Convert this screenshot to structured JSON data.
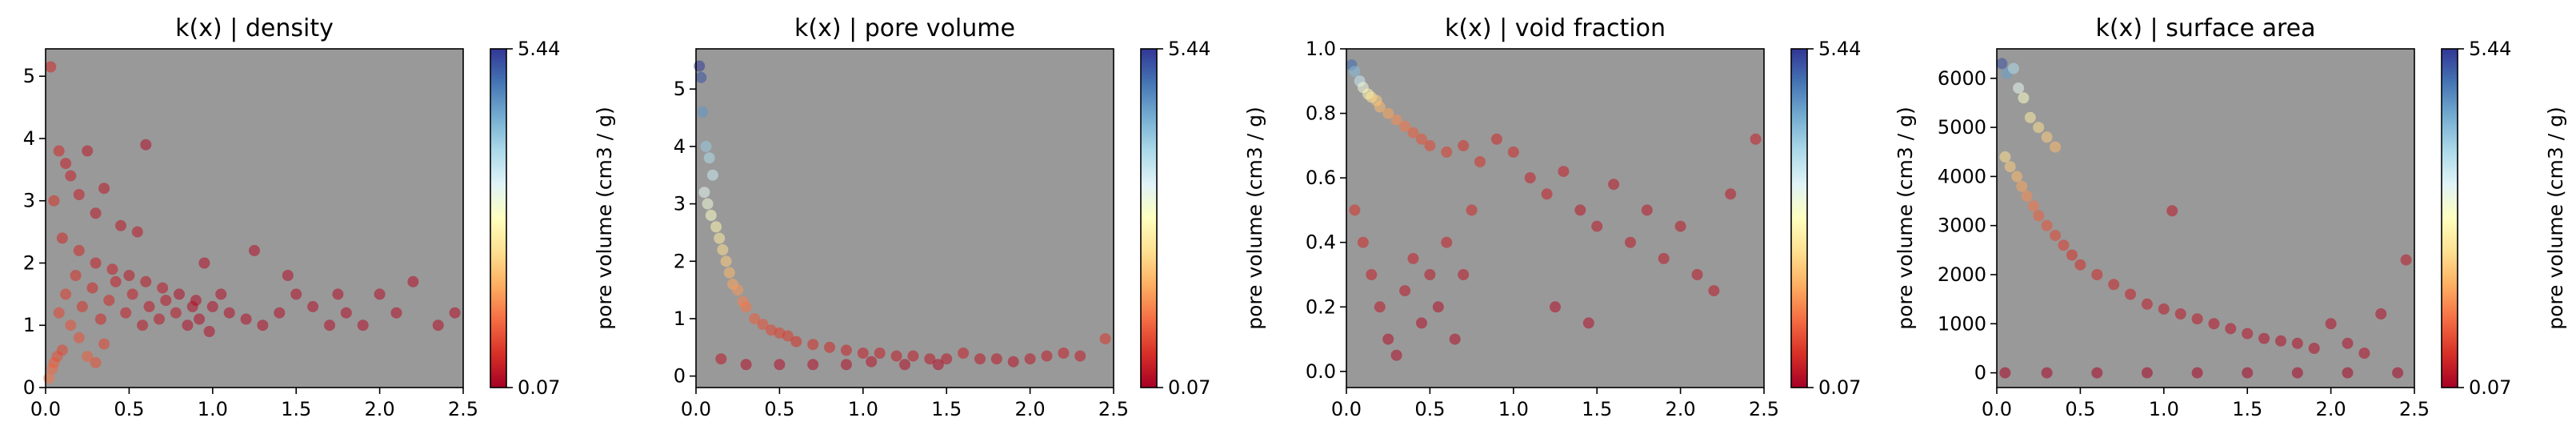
{
  "chart_data": [
    {
      "type": "scatter",
      "title": "k(x) | density",
      "xlim": [
        0,
        2.5
      ],
      "ylim": [
        0,
        5.44
      ],
      "xticks": [
        "0.0",
        "0.5",
        "1.0",
        "1.5",
        "2.0",
        "2.5"
      ],
      "xtick_values": [
        0,
        0.5,
        1.0,
        1.5,
        2.0,
        2.5
      ],
      "yticks": [
        "0",
        "1",
        "2",
        "3",
        "4",
        "5"
      ],
      "ytick_values": [
        0,
        1,
        2,
        3,
        4,
        5
      ],
      "colorbar": {
        "label": "pore volume (cm3 / g)",
        "min": 0.07,
        "max": 5.44,
        "min_label": "0.07",
        "max_label": "5.44",
        "colormap": "RdYlBu"
      },
      "points": [
        [
          0.02,
          0.15,
          1.2
        ],
        [
          0.04,
          0.3,
          1.1
        ],
        [
          0.05,
          0.4,
          1.0
        ],
        [
          0.07,
          0.5,
          0.9
        ],
        [
          0.1,
          0.6,
          0.8
        ],
        [
          0.03,
          5.15,
          0.5
        ],
        [
          0.05,
          3.0,
          0.6
        ],
        [
          0.08,
          3.8,
          0.5
        ],
        [
          0.12,
          3.6,
          0.4
        ],
        [
          0.15,
          3.4,
          0.4
        ],
        [
          0.2,
          3.1,
          0.4
        ],
        [
          0.25,
          3.8,
          0.3
        ],
        [
          0.3,
          2.8,
          0.3
        ],
        [
          0.35,
          3.2,
          0.3
        ],
        [
          0.6,
          3.9,
          0.2
        ],
        [
          0.45,
          2.6,
          0.3
        ],
        [
          0.55,
          2.5,
          0.3
        ],
        [
          0.1,
          2.4,
          0.5
        ],
        [
          0.2,
          2.2,
          0.5
        ],
        [
          0.3,
          2.0,
          0.4
        ],
        [
          0.4,
          1.9,
          0.4
        ],
        [
          0.5,
          1.8,
          0.3
        ],
        [
          0.6,
          1.7,
          0.3
        ],
        [
          0.7,
          1.6,
          0.3
        ],
        [
          0.8,
          1.5,
          0.2
        ],
        [
          0.9,
          1.4,
          0.2
        ],
        [
          1.0,
          1.3,
          0.2
        ],
        [
          1.1,
          1.2,
          0.2
        ],
        [
          1.2,
          1.1,
          0.2
        ],
        [
          1.3,
          1.0,
          0.2
        ],
        [
          1.4,
          1.2,
          0.2
        ],
        [
          1.5,
          1.5,
          0.2
        ],
        [
          1.6,
          1.3,
          0.2
        ],
        [
          1.7,
          1.0,
          0.2
        ],
        [
          1.8,
          1.2,
          0.2
        ],
        [
          1.9,
          1.0,
          0.2
        ],
        [
          2.0,
          1.5,
          0.2
        ],
        [
          2.1,
          1.2,
          0.2
        ],
        [
          2.2,
          1.7,
          0.2
        ],
        [
          2.35,
          1.0,
          0.2
        ],
        [
          2.45,
          1.2,
          0.2
        ],
        [
          1.25,
          2.2,
          0.2
        ],
        [
          1.45,
          1.8,
          0.2
        ],
        [
          1.75,
          1.5,
          0.2
        ],
        [
          0.95,
          2.0,
          0.2
        ],
        [
          0.15,
          1.0,
          0.9
        ],
        [
          0.2,
          0.8,
          0.9
        ],
        [
          0.25,
          0.5,
          1.0
        ],
        [
          0.3,
          0.4,
          0.9
        ],
        [
          0.35,
          0.7,
          0.8
        ],
        [
          0.08,
          1.2,
          0.8
        ],
        [
          0.12,
          1.5,
          0.7
        ],
        [
          0.18,
          1.8,
          0.6
        ],
        [
          0.22,
          1.3,
          0.6
        ],
        [
          0.28,
          1.6,
          0.5
        ],
        [
          0.33,
          1.1,
          0.5
        ],
        [
          0.38,
          1.4,
          0.5
        ],
        [
          0.42,
          1.7,
          0.4
        ],
        [
          0.48,
          1.2,
          0.4
        ],
        [
          0.52,
          1.5,
          0.4
        ],
        [
          0.58,
          1.0,
          0.3
        ],
        [
          0.62,
          1.3,
          0.3
        ],
        [
          0.68,
          1.1,
          0.3
        ],
        [
          0.72,
          1.4,
          0.3
        ],
        [
          0.78,
          1.2,
          0.3
        ],
        [
          0.85,
          1.0,
          0.2
        ],
        [
          0.88,
          1.3,
          0.2
        ],
        [
          0.92,
          1.1,
          0.2
        ],
        [
          0.98,
          0.9,
          0.2
        ],
        [
          1.05,
          1.5,
          0.2
        ]
      ]
    },
    {
      "type": "scatter",
      "title": "k(x) | pore volume",
      "xlim": [
        0,
        2.5
      ],
      "ylim": [
        -0.2,
        5.7
      ],
      "xticks": [
        "0.0",
        "0.5",
        "1.0",
        "1.5",
        "2.0",
        "2.5"
      ],
      "xtick_values": [
        0,
        0.5,
        1.0,
        1.5,
        2.0,
        2.5
      ],
      "yticks": [
        "0",
        "1",
        "2",
        "3",
        "4",
        "5"
      ],
      "ytick_values": [
        0,
        1,
        2,
        3,
        4,
        5
      ],
      "colorbar": {
        "label": "pore volume (cm3 / g)",
        "min": 0.07,
        "max": 5.44,
        "min_label": "0.07",
        "max_label": "5.44",
        "colormap": "RdYlBu"
      },
      "points": [
        [
          0.02,
          5.4,
          5.4
        ],
        [
          0.03,
          5.2,
          5.2
        ],
        [
          0.04,
          4.6,
          4.6
        ],
        [
          0.06,
          4.0,
          4.0
        ],
        [
          0.08,
          3.8,
          3.8
        ],
        [
          0.1,
          3.5,
          3.5
        ],
        [
          0.05,
          3.2,
          3.2
        ],
        [
          0.07,
          3.0,
          3.0
        ],
        [
          0.09,
          2.8,
          2.8
        ],
        [
          0.12,
          2.6,
          2.6
        ],
        [
          0.14,
          2.4,
          2.4
        ],
        [
          0.16,
          2.2,
          2.2
        ],
        [
          0.18,
          2.0,
          2.0
        ],
        [
          0.2,
          1.8,
          1.8
        ],
        [
          0.22,
          1.6,
          1.6
        ],
        [
          0.25,
          1.5,
          1.5
        ],
        [
          0.28,
          1.3,
          1.3
        ],
        [
          0.3,
          1.2,
          1.2
        ],
        [
          0.35,
          1.0,
          1.0
        ],
        [
          0.4,
          0.9,
          0.9
        ],
        [
          0.45,
          0.8,
          0.8
        ],
        [
          0.5,
          0.75,
          0.75
        ],
        [
          0.55,
          0.7,
          0.7
        ],
        [
          0.6,
          0.6,
          0.6
        ],
        [
          0.7,
          0.55,
          0.55
        ],
        [
          0.8,
          0.5,
          0.5
        ],
        [
          0.9,
          0.45,
          0.45
        ],
        [
          1.0,
          0.4,
          0.4
        ],
        [
          1.1,
          0.4,
          0.4
        ],
        [
          1.2,
          0.35,
          0.35
        ],
        [
          1.3,
          0.35,
          0.35
        ],
        [
          1.4,
          0.3,
          0.3
        ],
        [
          1.5,
          0.3,
          0.3
        ],
        [
          1.6,
          0.4,
          0.4
        ],
        [
          1.7,
          0.3,
          0.3
        ],
        [
          1.8,
          0.3,
          0.3
        ],
        [
          1.9,
          0.25,
          0.25
        ],
        [
          2.0,
          0.3,
          0.3
        ],
        [
          2.1,
          0.35,
          0.35
        ],
        [
          2.2,
          0.4,
          0.4
        ],
        [
          2.3,
          0.35,
          0.35
        ],
        [
          2.45,
          0.65,
          0.65
        ],
        [
          0.15,
          0.3,
          0.3
        ],
        [
          0.3,
          0.2,
          0.2
        ],
        [
          0.5,
          0.2,
          0.2
        ],
        [
          0.7,
          0.2,
          0.2
        ],
        [
          0.9,
          0.2,
          0.2
        ],
        [
          1.05,
          0.25,
          0.25
        ],
        [
          1.25,
          0.2,
          0.2
        ],
        [
          1.45,
          0.2,
          0.2
        ]
      ]
    },
    {
      "type": "scatter",
      "title": "k(x) | void fraction",
      "xlim": [
        0,
        2.5
      ],
      "ylim": [
        -0.05,
        1.0
      ],
      "xticks": [
        "0.0",
        "0.5",
        "1.0",
        "1.5",
        "2.0",
        "2.5"
      ],
      "xtick_values": [
        0,
        0.5,
        1.0,
        1.5,
        2.0,
        2.5
      ],
      "yticks": [
        "0.0",
        "0.2",
        "0.4",
        "0.6",
        "0.8",
        "1.0"
      ],
      "ytick_values": [
        0,
        0.2,
        0.4,
        0.6,
        0.8,
        1.0
      ],
      "colorbar": {
        "label": "pore volume (cm3 / g)",
        "min": 0.07,
        "max": 5.44,
        "min_label": "0.07",
        "max_label": "5.44",
        "colormap": "RdYlBu"
      },
      "points": [
        [
          0.03,
          0.95,
          5.0
        ],
        [
          0.05,
          0.93,
          4.2
        ],
        [
          0.08,
          0.9,
          3.5
        ],
        [
          0.1,
          0.88,
          3.0
        ],
        [
          0.13,
          0.86,
          2.6
        ],
        [
          0.15,
          0.85,
          2.3
        ],
        [
          0.18,
          0.84,
          2.0
        ],
        [
          0.2,
          0.82,
          1.8
        ],
        [
          0.25,
          0.8,
          1.6
        ],
        [
          0.3,
          0.78,
          1.4
        ],
        [
          0.35,
          0.76,
          1.2
        ],
        [
          0.4,
          0.74,
          1.0
        ],
        [
          0.45,
          0.72,
          0.9
        ],
        [
          0.5,
          0.7,
          0.8
        ],
        [
          0.6,
          0.68,
          0.7
        ],
        [
          0.7,
          0.7,
          0.6
        ],
        [
          0.8,
          0.65,
          0.6
        ],
        [
          0.9,
          0.72,
          0.5
        ],
        [
          1.0,
          0.68,
          0.5
        ],
        [
          1.1,
          0.6,
          0.4
        ],
        [
          1.2,
          0.55,
          0.4
        ],
        [
          1.3,
          0.62,
          0.4
        ],
        [
          1.4,
          0.5,
          0.3
        ],
        [
          1.5,
          0.45,
          0.3
        ],
        [
          1.6,
          0.58,
          0.3
        ],
        [
          1.7,
          0.4,
          0.3
        ],
        [
          1.8,
          0.5,
          0.3
        ],
        [
          1.9,
          0.35,
          0.3
        ],
        [
          2.0,
          0.45,
          0.3
        ],
        [
          2.1,
          0.3,
          0.3
        ],
        [
          2.2,
          0.25,
          0.3
        ],
        [
          2.3,
          0.55,
          0.3
        ],
        [
          2.45,
          0.72,
          0.4
        ],
        [
          1.25,
          0.2,
          0.2
        ],
        [
          1.45,
          0.15,
          0.2
        ],
        [
          0.05,
          0.5,
          0.6
        ],
        [
          0.1,
          0.4,
          0.5
        ],
        [
          0.15,
          0.3,
          0.4
        ],
        [
          0.2,
          0.2,
          0.3
        ],
        [
          0.25,
          0.1,
          0.2
        ],
        [
          0.3,
          0.05,
          0.2
        ],
        [
          0.35,
          0.25,
          0.3
        ],
        [
          0.4,
          0.35,
          0.4
        ],
        [
          0.45,
          0.15,
          0.2
        ],
        [
          0.5,
          0.3,
          0.3
        ],
        [
          0.55,
          0.2,
          0.2
        ],
        [
          0.6,
          0.4,
          0.4
        ],
        [
          0.65,
          0.1,
          0.2
        ],
        [
          0.7,
          0.3,
          0.3
        ],
        [
          0.75,
          0.5,
          0.5
        ]
      ]
    },
    {
      "type": "scatter",
      "title": "k(x) | surface area",
      "xlim": [
        0,
        2.5
      ],
      "ylim": [
        -300,
        6600
      ],
      "xticks": [
        "0.0",
        "0.5",
        "1.0",
        "1.5",
        "2.0",
        "2.5"
      ],
      "xtick_values": [
        0,
        0.5,
        1.0,
        1.5,
        2.0,
        2.5
      ],
      "yticks": [
        "0",
        "1000",
        "2000",
        "3000",
        "4000",
        "5000",
        "6000"
      ],
      "ytick_values": [
        0,
        1000,
        2000,
        3000,
        4000,
        5000,
        6000
      ],
      "colorbar": {
        "label": "pore volume (cm3 / g)",
        "min": 0.07,
        "max": 5.44,
        "min_label": "0.07",
        "max_label": "5.44",
        "colormap": "RdYlBu"
      },
      "points": [
        [
          0.03,
          6300,
          5.2
        ],
        [
          0.06,
          6100,
          4.5
        ],
        [
          0.1,
          6200,
          3.8
        ],
        [
          0.13,
          5800,
          3.2
        ],
        [
          0.16,
          5600,
          2.8
        ],
        [
          0.2,
          5200,
          2.4
        ],
        [
          0.25,
          5000,
          2.2
        ],
        [
          0.3,
          4800,
          2.0
        ],
        [
          0.35,
          4600,
          1.8
        ],
        [
          0.05,
          4400,
          2.2
        ],
        [
          0.08,
          4200,
          2.0
        ],
        [
          0.12,
          4000,
          1.8
        ],
        [
          0.15,
          3800,
          1.6
        ],
        [
          0.18,
          3600,
          1.4
        ],
        [
          0.22,
          3400,
          1.2
        ],
        [
          0.25,
          3200,
          1.0
        ],
        [
          0.3,
          3000,
          0.9
        ],
        [
          0.35,
          2800,
          0.8
        ],
        [
          0.4,
          2600,
          0.7
        ],
        [
          0.45,
          2400,
          0.6
        ],
        [
          0.5,
          2200,
          0.55
        ],
        [
          0.6,
          2000,
          0.5
        ],
        [
          0.7,
          1800,
          0.45
        ],
        [
          0.8,
          1600,
          0.4
        ],
        [
          0.9,
          1400,
          0.35
        ],
        [
          1.0,
          1300,
          0.3
        ],
        [
          1.1,
          1200,
          0.3
        ],
        [
          1.2,
          1100,
          0.3
        ],
        [
          1.3,
          1000,
          0.25
        ],
        [
          1.4,
          900,
          0.25
        ],
        [
          1.5,
          800,
          0.25
        ],
        [
          1.6,
          700,
          0.2
        ],
        [
          1.7,
          650,
          0.2
        ],
        [
          1.8,
          600,
          0.2
        ],
        [
          1.9,
          500,
          0.2
        ],
        [
          2.0,
          1000,
          0.2
        ],
        [
          2.1,
          600,
          0.2
        ],
        [
          2.2,
          400,
          0.2
        ],
        [
          2.3,
          1200,
          0.2
        ],
        [
          2.45,
          2300,
          0.3
        ],
        [
          1.05,
          3300,
          0.3
        ],
        [
          0.05,
          0,
          0.1
        ],
        [
          0.3,
          0,
          0.1
        ],
        [
          0.6,
          0,
          0.1
        ],
        [
          0.9,
          0,
          0.1
        ],
        [
          1.2,
          0,
          0.1
        ],
        [
          1.5,
          0,
          0.1
        ],
        [
          1.8,
          0,
          0.1
        ],
        [
          2.1,
          0,
          0.1
        ],
        [
          2.4,
          0,
          0.1
        ]
      ]
    }
  ]
}
